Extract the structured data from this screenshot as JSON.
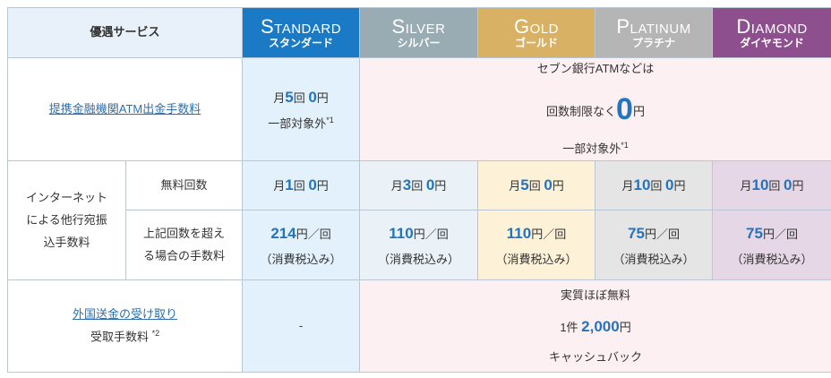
{
  "header": {
    "title": "優遇サービス",
    "ranks": [
      {
        "en": "Standard",
        "ja": "スタンダード",
        "color": "#1a7ac6"
      },
      {
        "en": "Silver",
        "ja": "シルバー",
        "color": "#9aacb3"
      },
      {
        "en": "Gold",
        "ja": "ゴールド",
        "color": "#d9b165"
      },
      {
        "en": "Platinum",
        "ja": "プラチナ",
        "color": "#b5b5b5"
      },
      {
        "en": "Diamond",
        "ja": "ダイヤモンド",
        "color": "#8e4f8e"
      }
    ]
  },
  "atm": {
    "label": "提携金融機関ATM出金手数料",
    "standard": {
      "pre": "月",
      "count": "5",
      "mid": "回 ",
      "fee": "0",
      "unit": "円",
      "note": "一部対象外",
      "sup": "*1"
    },
    "others": {
      "line1": "セブン銀行ATMなどは",
      "pre": "回数制限なく",
      "fee": "0",
      "unit": "円",
      "note": "一部対象外",
      "sup": "*1"
    }
  },
  "transfer": {
    "label": "インターネットによる他行宛振込手数料",
    "free_label": "無料回数",
    "over_label": "上記回数を超える場合の手数料",
    "free": [
      {
        "count": "1"
      },
      {
        "count": "3"
      },
      {
        "count": "5"
      },
      {
        "count": "10"
      },
      {
        "count": "10"
      }
    ],
    "free_text": {
      "pre": "月",
      "mid": "回 ",
      "fee": "0",
      "unit": "円"
    },
    "over": [
      {
        "fee": "214"
      },
      {
        "fee": "110"
      },
      {
        "fee": "110"
      },
      {
        "fee": "75"
      },
      {
        "fee": "75"
      }
    ],
    "over_text": {
      "unit": "円／回",
      "tax": "（消費税込み）"
    }
  },
  "remit": {
    "link": "外国送金の受け取り",
    "label": "受取手数料 ",
    "sup": "*2",
    "standard": "-",
    "others": {
      "line1": "実質ほぼ無料",
      "pre": "1件 ",
      "amount": "2,000",
      "unit": "円",
      "line3": "キャッシュバック"
    }
  }
}
